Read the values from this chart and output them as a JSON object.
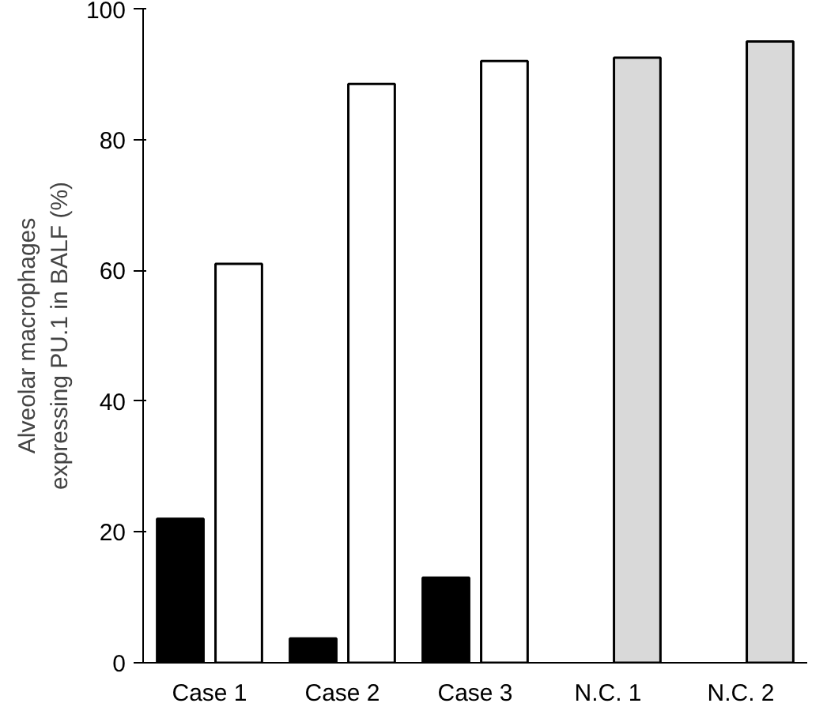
{
  "chart_data": {
    "type": "bar",
    "ylabel": "Alveolar macrophages\nexpressing PU.1 in BALF (%)",
    "categories": [
      "Case 1",
      "Case 2",
      "Case 3",
      "N.C. 1",
      "N.C. 2"
    ],
    "series": [
      {
        "color": "#000000",
        "values": [
          22,
          3.7,
          13,
          null,
          null
        ]
      },
      {
        "color": "#ffffff",
        "values": [
          61,
          88.5,
          92,
          null,
          null
        ]
      },
      {
        "color": "#d9d9d9",
        "values": [
          null,
          null,
          null,
          92.5,
          95
        ]
      }
    ],
    "ylim": [
      0,
      100
    ],
    "yticks": [
      0,
      20,
      40,
      60,
      80,
      100
    ],
    "grid": false
  }
}
